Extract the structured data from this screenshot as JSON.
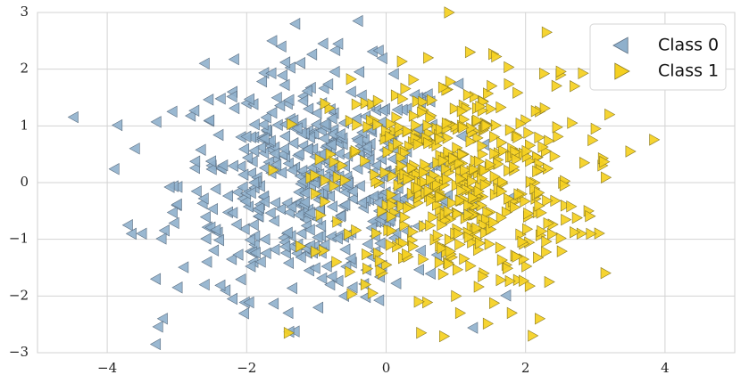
{
  "chart_data": {
    "type": "scatter",
    "title": "",
    "xlabel": "",
    "ylabel": "",
    "xlim": [
      -5,
      5
    ],
    "ylim": [
      -3,
      3
    ],
    "xticks": [
      -4,
      -2,
      0,
      2,
      4
    ],
    "yticks": [
      -3,
      -2,
      -1,
      0,
      1,
      2,
      3
    ],
    "xtick_labels": [
      "−4",
      "−2",
      "0",
      "2",
      "4"
    ],
    "ytick_labels": [
      "−3",
      "−2",
      "−1",
      "0",
      "1",
      "2",
      "3"
    ],
    "grid": true,
    "legend_position": "top-right",
    "series": [
      {
        "name": "Class 0",
        "marker": "triangle-left",
        "color": "#8fb0cc",
        "edge_color": "#5c6f82",
        "center": [
          -1.0,
          0.0
        ],
        "spread": [
          1.0,
          1.0
        ],
        "points": [
          [
            -3.3,
            -2.85
          ],
          [
            -3.6,
            0.6
          ],
          [
            -3.5,
            -0.9
          ],
          [
            -3.7,
            -0.75
          ],
          [
            -3.2,
            -2.4
          ],
          [
            -3.3,
            -1.7
          ],
          [
            -2.6,
            2.1
          ],
          [
            -2.6,
            -1.8
          ],
          [
            -2.3,
            -1.9
          ],
          [
            -2.2,
            -2.05
          ],
          [
            -1.4,
            -2.3
          ],
          [
            -1.5,
            2.4
          ],
          [
            -1.3,
            2.8
          ],
          [
            -0.9,
            2.45
          ],
          [
            -0.8,
            -1.8
          ],
          [
            -0.4,
            2.85
          ],
          [
            -0.5,
            1.6
          ],
          [
            -0.1,
            -0.5
          ],
          [
            0.0,
            0.2
          ],
          [
            0.3,
            1.3
          ],
          [
            0.5,
            -1.2
          ],
          [
            -2.0,
            1.4
          ],
          [
            -2.5,
            0.3
          ],
          [
            -3.0,
            -0.4
          ],
          [
            -1.9,
            -1.4
          ],
          [
            -1.1,
            -1.55
          ],
          [
            -0.6,
            -2.0
          ],
          [
            -1.7,
            0.9
          ],
          [
            -2.2,
            1.6
          ],
          [
            -0.2,
            0.9
          ]
        ]
      },
      {
        "name": "Class 1",
        "marker": "triangle-right",
        "color": "#f5d020",
        "edge_color": "#8a7a22",
        "center": [
          1.0,
          0.0
        ],
        "spread": [
          0.9,
          0.95
        ],
        "points": [
          [
            0.9,
            3.0
          ],
          [
            2.3,
            2.65
          ],
          [
            3.2,
            1.2
          ],
          [
            3.5,
            0.55
          ],
          [
            2.7,
            1.7
          ],
          [
            2.1,
            -2.7
          ],
          [
            1.4,
            -1.6
          ],
          [
            0.5,
            -2.65
          ],
          [
            -1.4,
            -2.65
          ],
          [
            -0.8,
            0.5
          ],
          [
            0.0,
            -1.45
          ],
          [
            2.5,
            1.9
          ],
          [
            3.1,
            0.3
          ],
          [
            2.8,
            -0.9
          ],
          [
            1.2,
            2.3
          ],
          [
            0.3,
            0.9
          ],
          [
            1.8,
            -2.3
          ],
          [
            2.2,
            -2.4
          ],
          [
            -0.9,
            -1.2
          ],
          [
            0.6,
            2.2
          ],
          [
            1.5,
            1.3
          ],
          [
            2.9,
            -0.5
          ],
          [
            -0.3,
            1.4
          ],
          [
            1.0,
            -2.0
          ],
          [
            0.2,
            0.2
          ],
          [
            1.6,
            0.4
          ],
          [
            2.0,
            1.1
          ],
          [
            0.8,
            -0.6
          ],
          [
            1.3,
            -1.0
          ],
          [
            1.9,
            -0.3
          ]
        ]
      }
    ]
  }
}
